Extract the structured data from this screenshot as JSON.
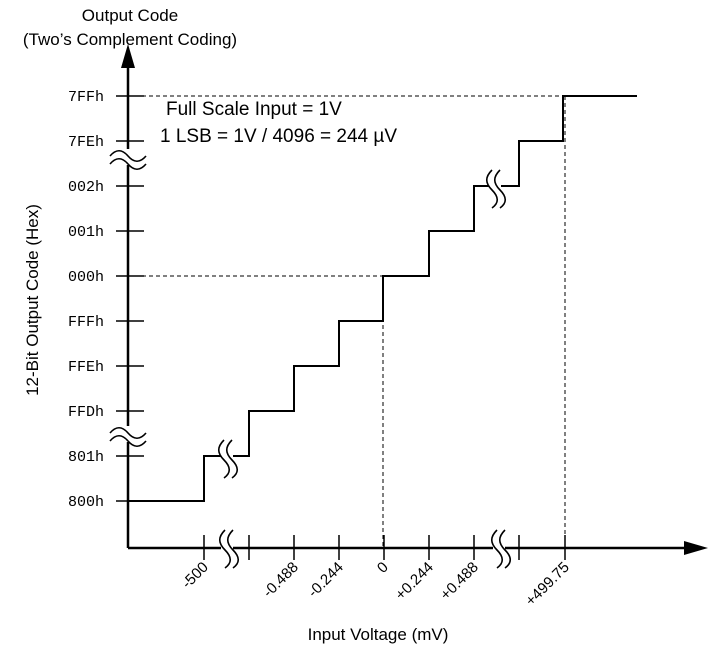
{
  "chart_data": {
    "type": "line",
    "title_line1": "Output Code",
    "title_line2": "(Two’s Complement Coding)",
    "ylabel": "12-Bit Output Code (Hex)",
    "xlabel": "Input Voltage (mV)",
    "annotation_line1": "Full Scale Input = 1V",
    "annotation_line2": "1 LSB = 1V / 4096 = 244 µV",
    "y_ticks": [
      "800h",
      "801h",
      "FFDh",
      "FFEh",
      "FFFh",
      "000h",
      "001h",
      "002h",
      "7FEh",
      "7FFh"
    ],
    "x_ticks": [
      "-500",
      "-0.488",
      "-0.244",
      "0",
      "+0.244",
      "+0.488",
      "+499.75"
    ],
    "series": [
      {
        "values": [
          {
            "x": "-500",
            "y": "800h"
          },
          {
            "x": "-0.488",
            "y": "FFEh"
          },
          {
            "x": "-0.244",
            "y": "FFFh"
          },
          {
            "x": "0",
            "y": "000h"
          },
          {
            "x": "+0.244",
            "y": "001h"
          },
          {
            "x": "+0.488",
            "y": "002h"
          },
          {
            "x": "+499.75",
            "y": "7FFh"
          }
        ]
      }
    ],
    "axis_breaks": [
      "y",
      "x"
    ],
    "grid": false,
    "colors": {
      "line": "#000000",
      "guide": "#000000",
      "background": "#ffffff"
    }
  }
}
